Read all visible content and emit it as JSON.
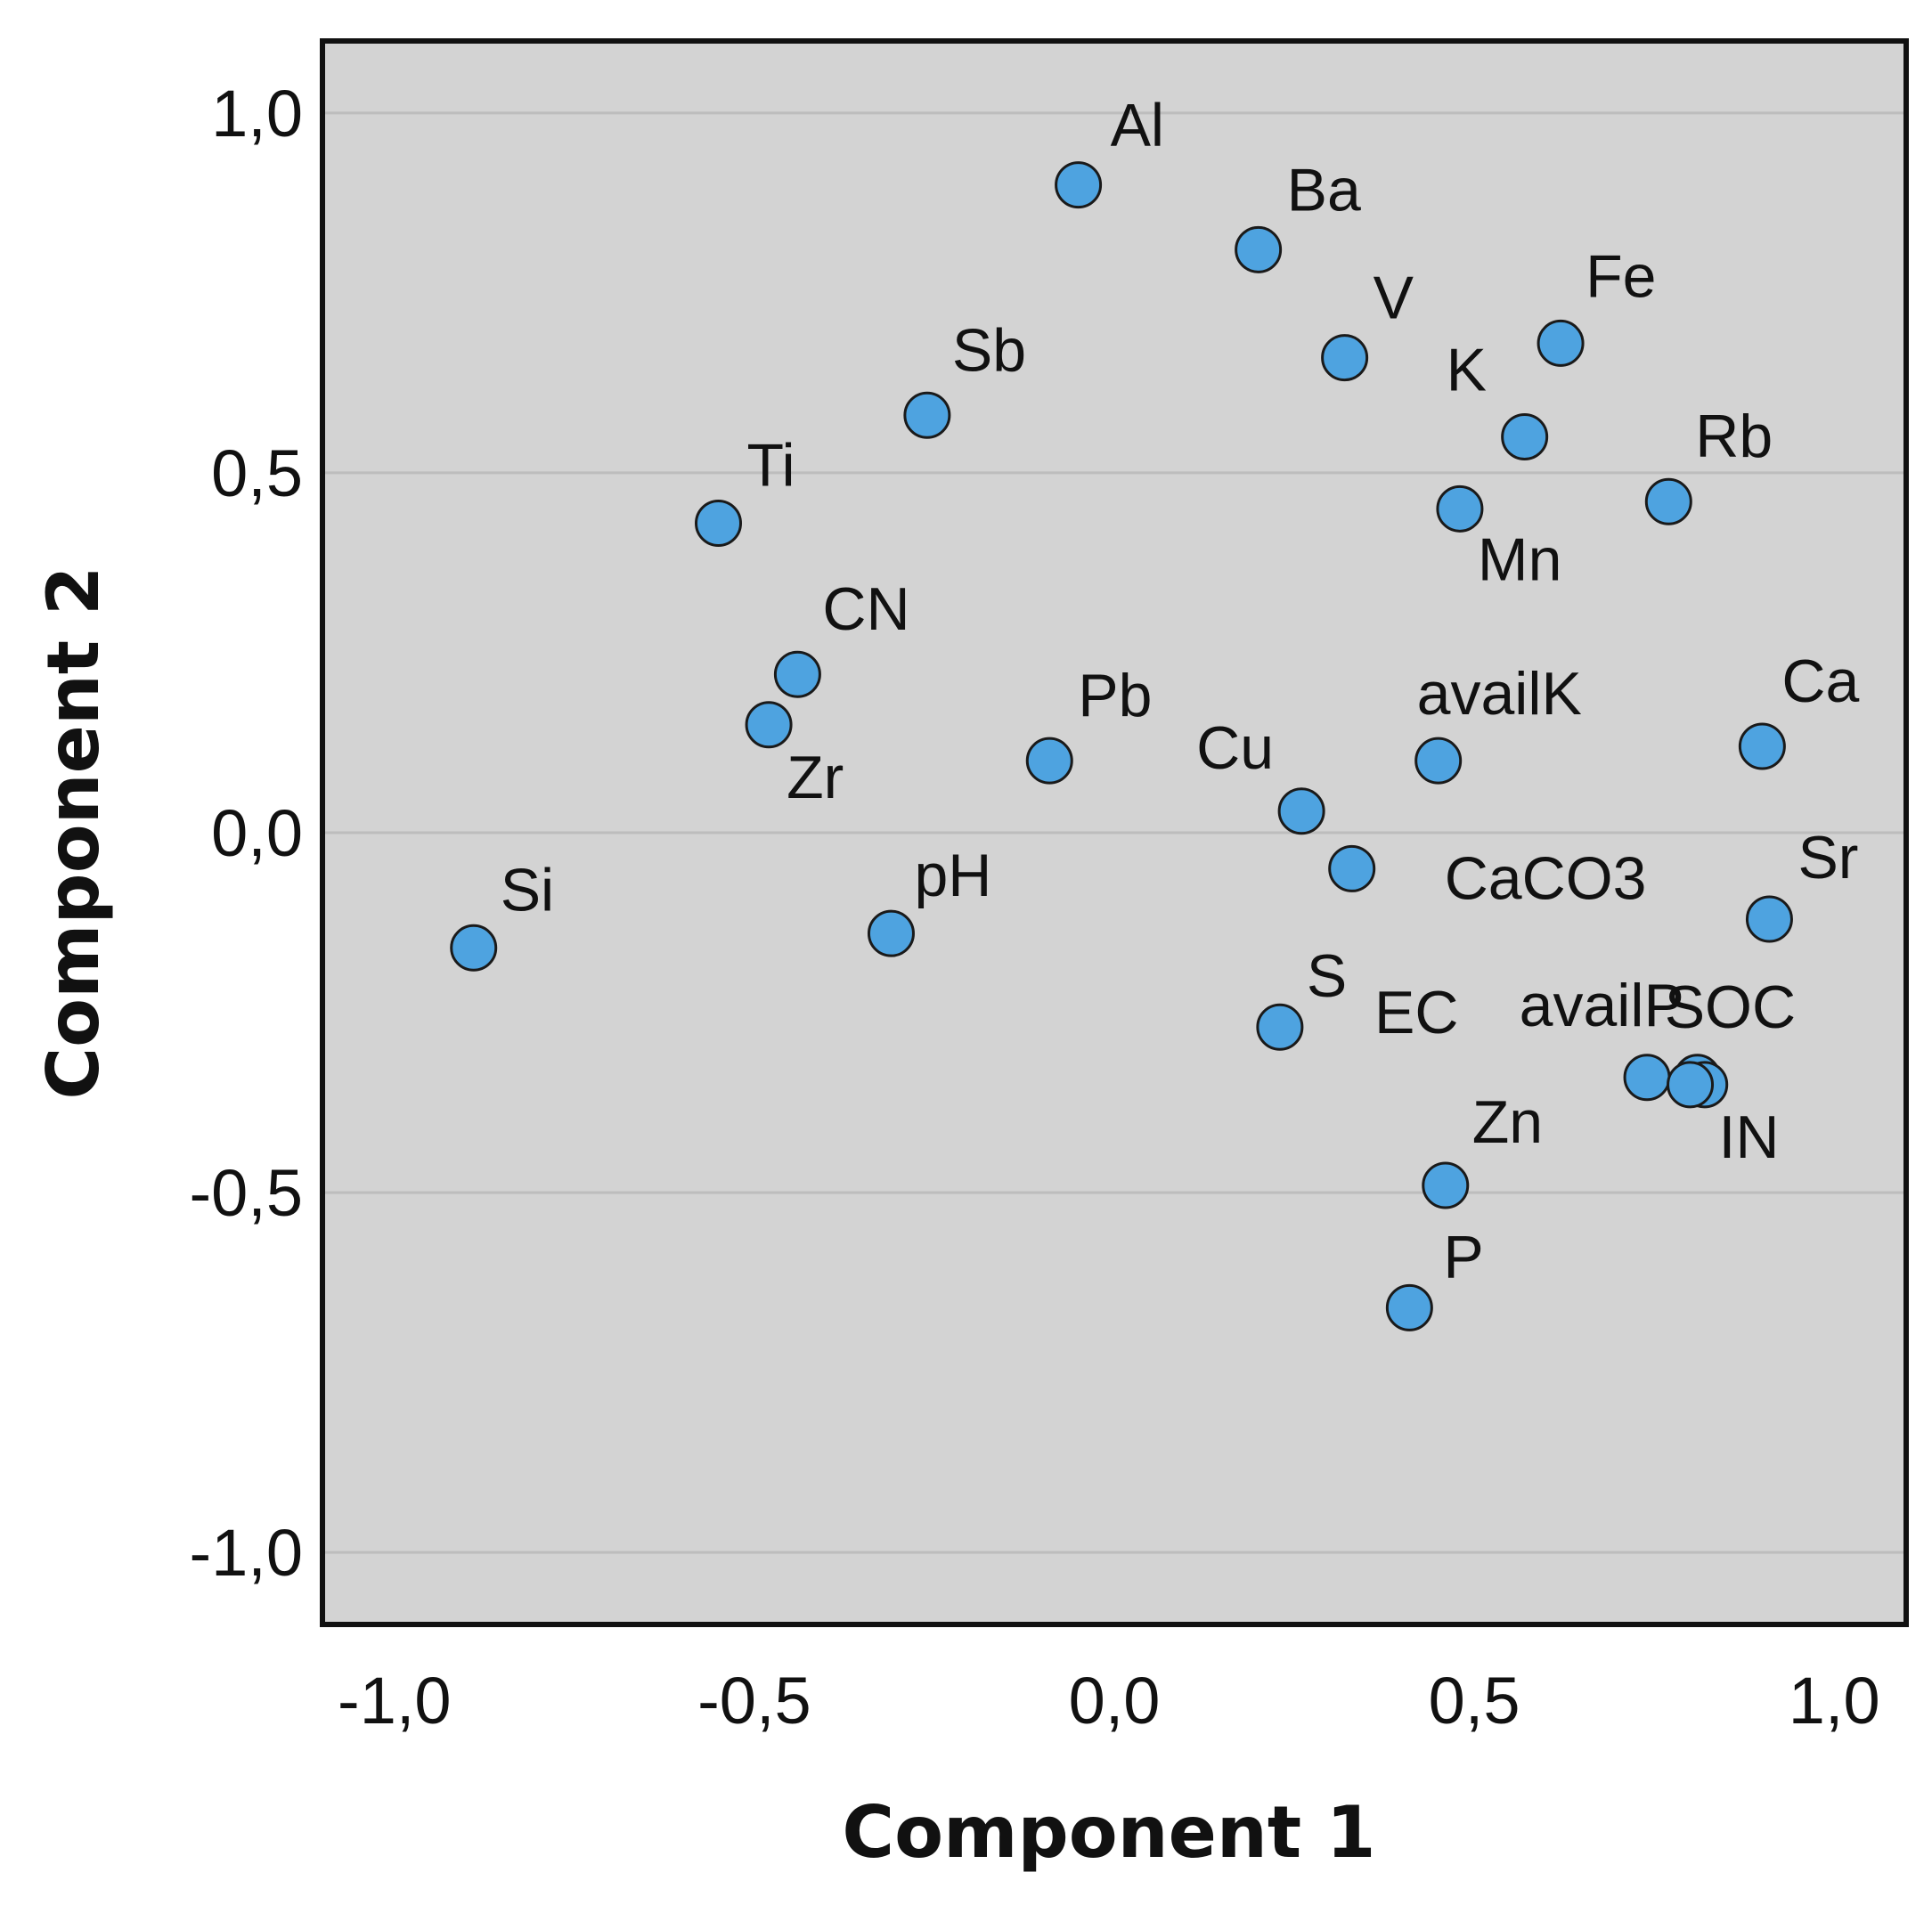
{
  "chart_data": {
    "type": "scatter",
    "xlabel": "Component 1",
    "ylabel": "Component 2",
    "xlim": [
      -1.1,
      1.1
    ],
    "ylim": [
      -1.1,
      1.1
    ],
    "xticks": [
      "-1,0",
      "-0,5",
      "0,0",
      "0,5",
      "1,0"
    ],
    "yticks": [
      "1,0",
      "0,5",
      "0,0",
      "-0,5",
      "-1,0"
    ],
    "grid": "horizontal",
    "colors": {
      "marker": "#4ea3e0",
      "marker_edge": "#1a1a1a",
      "plot_bg": "#d3d3d3",
      "grid": "#bdbdbd"
    },
    "points": [
      {
        "name": "Al",
        "x": -0.05,
        "y": 0.9
      },
      {
        "name": "Ba",
        "x": 0.2,
        "y": 0.81
      },
      {
        "name": "V",
        "x": 0.32,
        "y": 0.66
      },
      {
        "name": "Fe",
        "x": 0.62,
        "y": 0.68
      },
      {
        "name": "K",
        "x": 0.57,
        "y": 0.55
      },
      {
        "name": "Rb",
        "x": 0.77,
        "y": 0.46
      },
      {
        "name": "Mn",
        "x": 0.48,
        "y": 0.45
      },
      {
        "name": "Sb",
        "x": -0.26,
        "y": 0.58
      },
      {
        "name": "Ti",
        "x": -0.55,
        "y": 0.43
      },
      {
        "name": "CN",
        "x": -0.44,
        "y": 0.22
      },
      {
        "name": "Zr",
        "x": -0.48,
        "y": 0.15
      },
      {
        "name": "Pb",
        "x": -0.09,
        "y": 0.1
      },
      {
        "name": "Cu",
        "x": 0.26,
        "y": 0.03
      },
      {
        "name": "availK",
        "x": 0.45,
        "y": 0.1
      },
      {
        "name": "Ca",
        "x": 0.9,
        "y": 0.12
      },
      {
        "name": "CaCO3",
        "x": 0.33,
        "y": -0.05
      },
      {
        "name": "Sr",
        "x": 0.91,
        "y": -0.12
      },
      {
        "name": "pH",
        "x": -0.31,
        "y": -0.14
      },
      {
        "name": "Si",
        "x": -0.89,
        "y": -0.16
      },
      {
        "name": "S",
        "x": 0.23,
        "y": -0.27
      },
      {
        "name": "EC",
        "x": 0.74,
        "y": -0.34
      },
      {
        "name": "availP",
        "x": 0.81,
        "y": -0.34
      },
      {
        "name": "SOC",
        "x": 0.82,
        "y": -0.35
      },
      {
        "name": "IN",
        "x": 0.8,
        "y": -0.35
      },
      {
        "name": "Zn",
        "x": 0.46,
        "y": -0.49
      },
      {
        "name": "P",
        "x": 0.41,
        "y": -0.66
      }
    ]
  }
}
